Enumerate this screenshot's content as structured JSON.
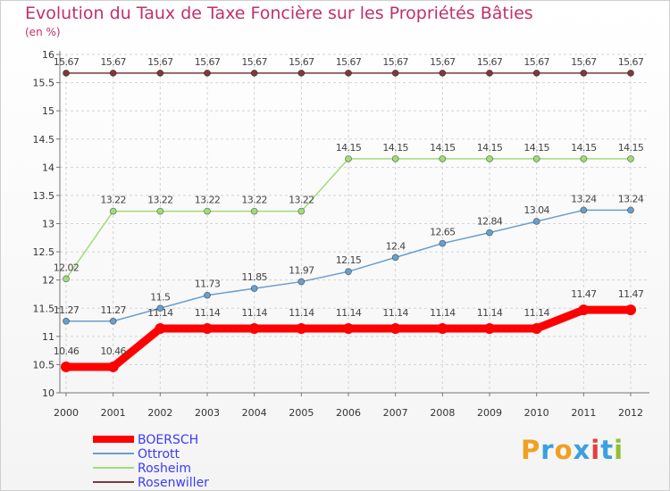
{
  "chart_data": {
    "type": "line",
    "title": "Evolution du Taux de Taxe Foncière sur les Propriétés Bâties",
    "unit_label": "(en %)",
    "xlabel": "",
    "ylabel": "",
    "ylim": [
      10,
      16
    ],
    "y_ticks": [
      "10",
      "10.5",
      "11",
      "11.5",
      "12",
      "12.5",
      "13",
      "13.5",
      "14",
      "14.5",
      "15",
      "15.5",
      "16"
    ],
    "categories": [
      "2000",
      "2001",
      "2002",
      "2003",
      "2004",
      "2005",
      "2006",
      "2007",
      "2008",
      "2009",
      "2010",
      "2011",
      "2012"
    ],
    "series": [
      {
        "name": "BOERSCH",
        "color": "#ff0000",
        "values": [
          10.46,
          10.46,
          11.14,
          11.14,
          11.14,
          11.14,
          11.14,
          11.14,
          11.14,
          11.14,
          11.14,
          11.47,
          11.47
        ],
        "labels": [
          "10.46",
          "10.46",
          "11.14",
          "11.14",
          "11.14",
          "11.14",
          "11.14",
          "11.14",
          "11.14",
          "11.14",
          "11.14",
          "11.47",
          "11.47"
        ]
      },
      {
        "name": "Ottrott",
        "color": "#6a9fcc",
        "values": [
          11.27,
          11.27,
          11.5,
          11.73,
          11.85,
          11.97,
          12.15,
          12.4,
          12.65,
          12.84,
          13.04,
          13.24,
          13.24
        ],
        "labels": [
          "11.27",
          "11.27",
          "11.5",
          "11.73",
          "11.85",
          "11.97",
          "12.15",
          "12.4",
          "12.65",
          "12.84",
          "13.04",
          "13.24",
          "13.24"
        ]
      },
      {
        "name": "Rosheim",
        "color": "#9fdc7a",
        "values": [
          12.02,
          13.22,
          13.22,
          13.22,
          13.22,
          13.22,
          14.15,
          14.15,
          14.15,
          14.15,
          14.15,
          14.15,
          14.15
        ],
        "labels": [
          "12.02",
          "13.22",
          "13.22",
          "13.22",
          "13.22",
          "13.22",
          "14.15",
          "14.15",
          "14.15",
          "14.15",
          "14.15",
          "14.15",
          "14.15"
        ]
      },
      {
        "name": "Rosenwiller",
        "color": "#7a3b3b",
        "values": [
          15.67,
          15.67,
          15.67,
          15.67,
          15.67,
          15.67,
          15.67,
          15.67,
          15.67,
          15.67,
          15.67,
          15.67,
          15.67
        ],
        "labels": [
          "15.67",
          "15.67",
          "15.67",
          "15.67",
          "15.67",
          "15.67",
          "15.67",
          "15.67",
          "15.67",
          "15.67",
          "15.67",
          "15.67",
          "15.67"
        ]
      }
    ],
    "legend": [
      "BOERSCH",
      "Ottrott",
      "Rosheim",
      "Rosenwiller"
    ],
    "legend_position": "bottom-left",
    "grid": true,
    "logo_text": "Proxiti"
  }
}
